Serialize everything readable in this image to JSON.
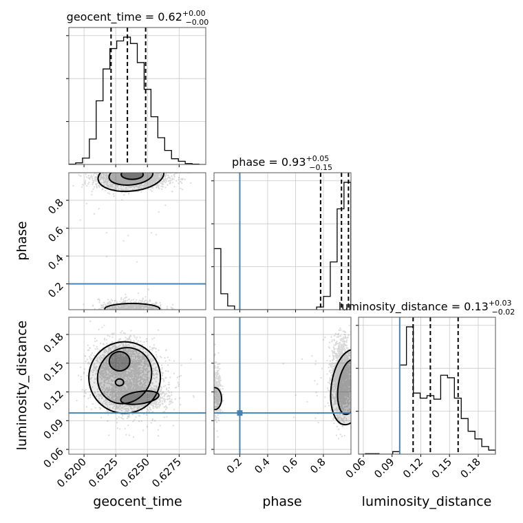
{
  "chart_data": {
    "type": "corner",
    "parameters": [
      "geocent_time",
      "phase",
      "luminosity_distance"
    ],
    "ranges": {
      "geocent_time": [
        0.6188,
        0.6296
      ],
      "phase": [
        0.015,
        0.998
      ],
      "luminosity_distance": [
        0.055,
        0.198
      ]
    },
    "truths": {
      "geocent_time": null,
      "phase": 0.2,
      "luminosity_distance": 0.098
    },
    "titles": [
      {
        "param": "geocent_time",
        "label": "geocent_time = 0.62",
        "plus": "+0.00",
        "minus": "−0.00"
      },
      {
        "param": "phase",
        "label": "phase = 0.93",
        "plus": "+0.05",
        "minus": "−0.15"
      },
      {
        "param": "luminosity_distance",
        "label": "luminosity_distance = 0.13",
        "plus": "+0.03",
        "minus": "−0.02"
      }
    ],
    "ticks": {
      "geocent_time": {
        "values": [
          0.62,
          0.6225,
          0.625,
          0.6275
        ],
        "labels": [
          "0.6200",
          "0.6225",
          "0.6250",
          "0.6275"
        ]
      },
      "phase_x": {
        "values": [
          0.2,
          0.4,
          0.6,
          0.8
        ],
        "labels": [
          "0.2",
          "0.4",
          "0.6",
          "0.8"
        ]
      },
      "phase_y": {
        "values": [
          0.2,
          0.4,
          0.6,
          0.8
        ],
        "labels": [
          "0.2",
          "0.4",
          "0.6",
          "0.8"
        ]
      },
      "luminosity_distance": {
        "values": [
          0.06,
          0.09,
          0.12,
          0.15,
          0.18
        ],
        "labels": [
          "0.06",
          "0.09",
          "0.12",
          "0.15",
          "0.18"
        ]
      }
    },
    "histograms": {
      "geocent_time": {
        "x_start": 0.6188,
        "bin_width": 0.00054,
        "counts": [
          0.5,
          2.5,
          10,
          40,
          100,
          150,
          182,
          194,
          200,
          190,
          160,
          118,
          75,
          42,
          22,
          9,
          5,
          1.5,
          0.5,
          0
        ],
        "quantiles": [
          0.62213,
          0.62342,
          0.62486
        ]
      },
      "phase": {
        "x_start": 0.015,
        "bin_width": 0.0491,
        "counts": [
          115,
          30,
          7,
          0,
          0,
          0,
          0,
          0,
          0,
          0,
          0,
          0,
          0,
          0,
          0,
          5,
          25,
          90,
          190,
          240
        ],
        "quantiles": [
          0.78,
          0.93,
          0.98
        ]
      },
      "luminosity_distance": {
        "x_start": 0.055,
        "bin_width": 0.00715,
        "counts": [
          0,
          1,
          1,
          0,
          0,
          5,
          175,
          250,
          120,
          110,
          115,
          108,
          155,
          150,
          110,
          70,
          45,
          30,
          15,
          8
        ],
        "quantiles": [
          0.112,
          0.13,
          0.159
        ]
      }
    },
    "contour_panels": [
      {
        "x": "geocent_time",
        "y": "phase"
      },
      {
        "x": "geocent_time",
        "y": "luminosity_distance"
      },
      {
        "x": "phase",
        "y": "luminosity_distance"
      }
    ],
    "grid": true
  }
}
